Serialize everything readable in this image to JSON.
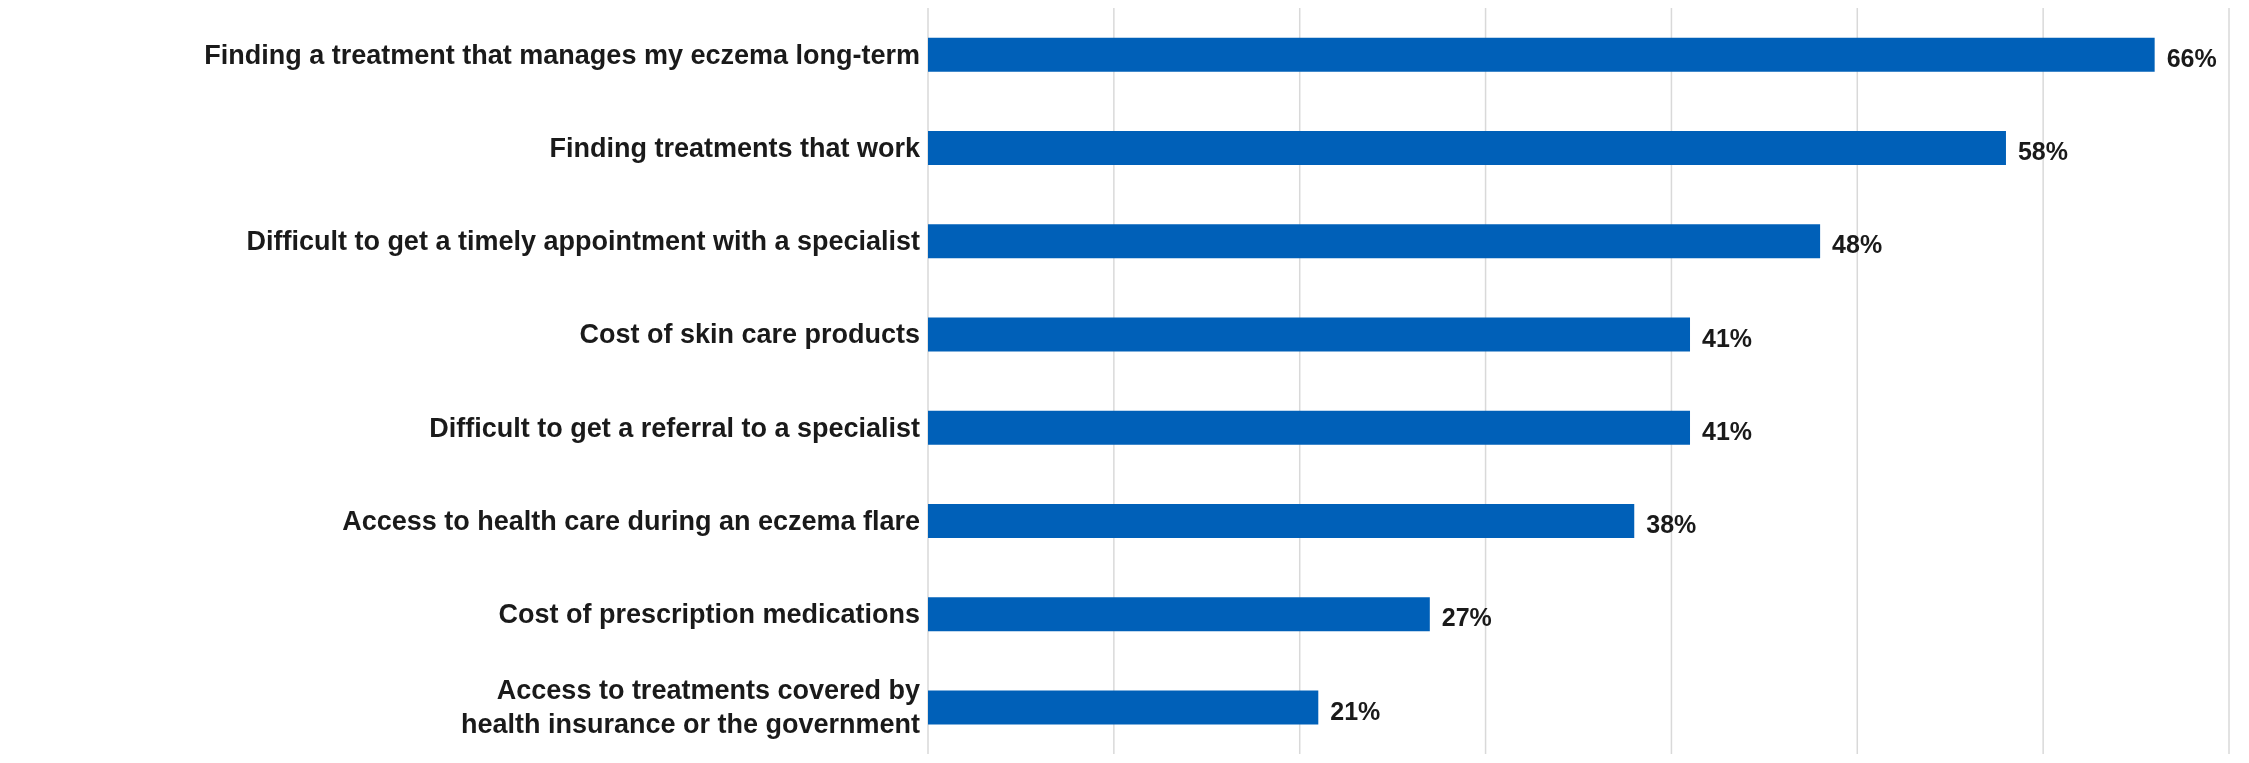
{
  "chart_data": {
    "type": "bar",
    "orientation": "horizontal",
    "categories": [
      "Finding a treatment that manages my eczema long-term",
      "Finding treatments that work",
      "Difficult to get a timely appointment with a specialist",
      "Cost of skin care products",
      "Difficult to get a referral to a specialist",
      "Access to health care during an eczema flare",
      "Cost of prescription medications",
      "Access to treatments covered by health insurance or the government"
    ],
    "values": [
      66,
      58,
      48,
      41,
      41,
      38,
      27,
      21
    ],
    "value_labels": [
      "66%",
      "58%",
      "48%",
      "41%",
      "41%",
      "38%",
      "27%",
      "21%"
    ],
    "color": "#0060b8",
    "xlim": [
      0,
      70
    ],
    "xticks": [
      {
        "value": 0,
        "label": null
      },
      {
        "value": 10,
        "label": null
      },
      {
        "value": 20,
        "label": null
      },
      {
        "value": 30,
        "label": null
      },
      {
        "value": 40,
        "label": null
      },
      {
        "value": 50,
        "label": null
      },
      {
        "value": 60,
        "label": null
      },
      {
        "value": 70,
        "label": null
      }
    ],
    "grid": "x",
    "tick_labels": "y"
  }
}
